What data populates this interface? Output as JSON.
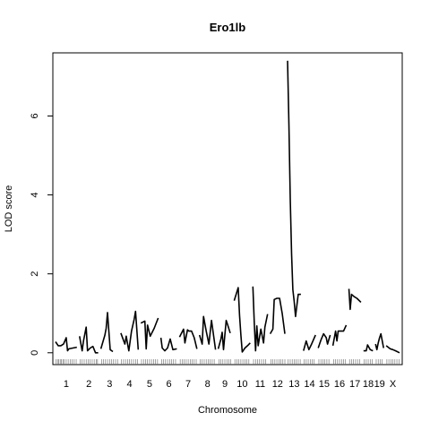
{
  "chart_data": {
    "type": "line",
    "title": "Ero1lb",
    "xlabel": "Chromosome",
    "ylabel": "LOD score",
    "ylim": [
      -0.3,
      7.6
    ],
    "yticks": [
      0,
      2,
      4,
      6
    ],
    "grid": false,
    "legend": "none",
    "line_color": "#000000",
    "chromosomes": [
      "1",
      "2",
      "3",
      "4",
      "5",
      "6",
      "7",
      "8",
      "9",
      "10",
      "11",
      "12",
      "13",
      "14",
      "15",
      "16",
      "17",
      "18",
      "19",
      "X"
    ],
    "chrom_ranges": [
      [
        0,
        16
      ],
      [
        18,
        32
      ],
      [
        34,
        47
      ],
      [
        49,
        62
      ],
      [
        64,
        77
      ],
      [
        79,
        91
      ],
      [
        93,
        106
      ],
      [
        108,
        120
      ],
      [
        122,
        132
      ],
      [
        134,
        146
      ],
      [
        148,
        159
      ],
      [
        161,
        172
      ],
      [
        174,
        184
      ],
      [
        186,
        195
      ],
      [
        197,
        206
      ],
      [
        208,
        218
      ],
      [
        220,
        229
      ],
      [
        231,
        238
      ],
      [
        240,
        246
      ],
      [
        248,
        258
      ]
    ],
    "series": [
      {
        "chrom": "1",
        "x": [
          0,
          2,
          4,
          6,
          8,
          9,
          10,
          13,
          16
        ],
        "y": [
          0.28,
          0.18,
          0.18,
          0.22,
          0.38,
          0.05,
          0.1,
          0.12,
          0.14
        ]
      },
      {
        "chrom": "2",
        "x": [
          18,
          20,
          21,
          23,
          24,
          26,
          28,
          30,
          32
        ],
        "y": [
          0.42,
          0.05,
          0.3,
          0.65,
          0.05,
          0.12,
          0.16,
          0.0,
          0.0
        ]
      },
      {
        "chrom": "3",
        "x": [
          34,
          37,
          38,
          39,
          41,
          43
        ],
        "y": [
          0.1,
          0.45,
          0.62,
          1.02,
          0.08,
          0.03
        ]
      },
      {
        "chrom": "4",
        "x": [
          49,
          52,
          53,
          55,
          57,
          59,
          60,
          62
        ],
        "y": [
          0.5,
          0.22,
          0.42,
          0.05,
          0.55,
          0.85,
          1.05,
          0.08
        ]
      },
      {
        "chrom": "5",
        "x": [
          64,
          67,
          68,
          69,
          71,
          74,
          77
        ],
        "y": [
          0.75,
          0.8,
          0.1,
          0.7,
          0.42,
          0.62,
          0.88
        ]
      },
      {
        "chrom": "6",
        "x": [
          79,
          80,
          82,
          84,
          86,
          88,
          91
        ],
        "y": [
          0.38,
          0.12,
          0.05,
          0.12,
          0.35,
          0.08,
          0.1
        ]
      },
      {
        "chrom": "7",
        "x": [
          93,
          96,
          97,
          99,
          100,
          102,
          104,
          106
        ],
        "y": [
          0.4,
          0.6,
          0.25,
          0.58,
          0.55,
          0.55,
          0.38,
          0.1
        ]
      },
      {
        "chrom": "8",
        "x": [
          108,
          110,
          111,
          113,
          115,
          117,
          120
        ],
        "y": [
          0.45,
          0.22,
          0.92,
          0.55,
          0.22,
          0.82,
          0.08
        ]
      },
      {
        "chrom": "9",
        "x": [
          122,
          124,
          125,
          126,
          128,
          129,
          131
        ],
        "y": [
          0.1,
          0.35,
          0.52,
          0.08,
          0.82,
          0.72,
          0.5
        ]
      },
      {
        "chrom": "10",
        "x": [
          134,
          137,
          138,
          139,
          140,
          142,
          144,
          146
        ],
        "y": [
          1.32,
          1.65,
          0.95,
          0.45,
          0.02,
          0.12,
          0.18,
          0.25
        ]
      },
      {
        "chrom": "11",
        "x": [
          148,
          149,
          150,
          151,
          152,
          154,
          156,
          157,
          159
        ],
        "y": [
          1.68,
          0.78,
          0.05,
          0.68,
          0.18,
          0.6,
          0.25,
          0.65,
          0.98
        ]
      },
      {
        "chrom": "12",
        "x": [
          161,
          163,
          164,
          166,
          168,
          170,
          172
        ],
        "y": [
          0.48,
          0.6,
          1.35,
          1.38,
          1.38,
          1.0,
          0.48
        ]
      },
      {
        "chrom": "13",
        "x": [
          174,
          175,
          176,
          177,
          178,
          179,
          180,
          182,
          184
        ],
        "y": [
          7.4,
          5.8,
          3.9,
          2.5,
          1.6,
          1.3,
          0.92,
          1.48,
          1.48
        ]
      },
      {
        "chrom": "14",
        "x": [
          186,
          188,
          190,
          192,
          195
        ],
        "y": [
          0.05,
          0.3,
          0.08,
          0.22,
          0.45
        ]
      },
      {
        "chrom": "15",
        "x": [
          197,
          199,
          201,
          203,
          204,
          206
        ],
        "y": [
          0.12,
          0.32,
          0.48,
          0.38,
          0.22,
          0.45
        ]
      },
      {
        "chrom": "16",
        "x": [
          208,
          210,
          211,
          212,
          214,
          216,
          218
        ],
        "y": [
          0.18,
          0.55,
          0.3,
          0.55,
          0.55,
          0.55,
          0.7
        ]
      },
      {
        "chrom": "17",
        "x": [
          220,
          221,
          222,
          224,
          226,
          229
        ],
        "y": [
          1.62,
          1.1,
          1.48,
          1.42,
          1.38,
          1.28
        ]
      },
      {
        "chrom": "18",
        "x": [
          231,
          233,
          234,
          236,
          238
        ],
        "y": [
          0.05,
          0.05,
          0.2,
          0.08,
          0.05
        ]
      },
      {
        "chrom": "19",
        "x": [
          240,
          241,
          242,
          243,
          244,
          246
        ],
        "y": [
          0.22,
          0.08,
          0.25,
          0.38,
          0.48,
          0.12
        ]
      },
      {
        "chrom": "X",
        "x": [
          248,
          251,
          253,
          255,
          258
        ],
        "y": [
          0.18,
          0.1,
          0.08,
          0.05,
          0.0
        ]
      }
    ],
    "markers": [
      0.5,
      1.5,
      2.5,
      3.5,
      4.5,
      5.5,
      6.5,
      8,
      9.5,
      11,
      12.5,
      14,
      15.5,
      18.5,
      20,
      21.5,
      23,
      24.5,
      26,
      27.5,
      29,
      30.5,
      31.5,
      34.5,
      36,
      37.5,
      39,
      40.5,
      42,
      43.5,
      45,
      46.5,
      49.5,
      51,
      52.5,
      54,
      55.5,
      57,
      58.5,
      60,
      61.5,
      64.5,
      66,
      67.5,
      69,
      70.5,
      72,
      73.5,
      75,
      76.5,
      79.5,
      81,
      82.5,
      84,
      85.5,
      87,
      88.5,
      90,
      93.5,
      95,
      96.5,
      98,
      99.5,
      101,
      102.5,
      104,
      105.5,
      108.5,
      110,
      111.5,
      113,
      114.5,
      116,
      117.5,
      119,
      122.5,
      124,
      125.5,
      127,
      128.5,
      130,
      131.5,
      134.5,
      136,
      137.5,
      139,
      140.5,
      142,
      143.5,
      145,
      148.5,
      150,
      151.5,
      153,
      154.5,
      156,
      157.5,
      161.5,
      163,
      164.5,
      166,
      167.5,
      169,
      170.5,
      172,
      174.5,
      176,
      177.5,
      179,
      180.5,
      182,
      183.5,
      186.5,
      188,
      189.5,
      191,
      192.5,
      194,
      197.5,
      199,
      200.5,
      202,
      203.5,
      205,
      208.5,
      210,
      211.5,
      213,
      214.5,
      216,
      217.5,
      220.5,
      222,
      223.5,
      225,
      226.5,
      228,
      231.5,
      233,
      234.5,
      236,
      237.5,
      240.5,
      242,
      243.5,
      245,
      248.5,
      250,
      251.5,
      253,
      254.5,
      256,
      257.5
    ]
  }
}
